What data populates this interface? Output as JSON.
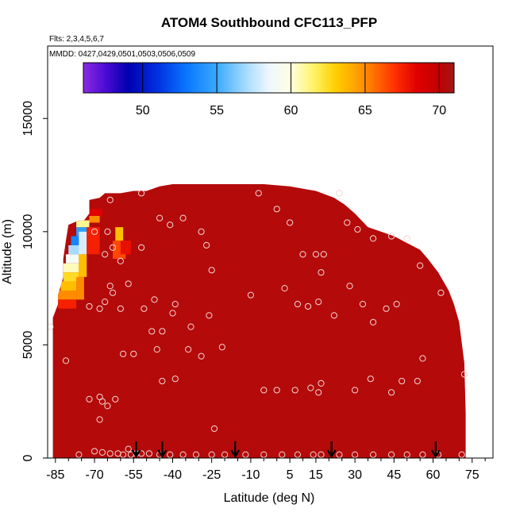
{
  "chart_data": {
    "type": "heatmap",
    "title": "ATOM4 Southbound CFC113_PFP",
    "subtitle_flights": "Flts: 2,3,4,5,6,7",
    "subtitle_dates": "MMDD: 0427,0429,0501,0503,0506,0509",
    "xlabel": "Latitude (deg N)",
    "ylabel": "Altitude (m)",
    "xlim": [
      -88,
      83
    ],
    "ylim": [
      0,
      18200
    ],
    "x_ticks": [
      -85,
      -70,
      -55,
      -40,
      -25,
      -10,
      5,
      15,
      30,
      45,
      60,
      75
    ],
    "x_minor_ticks": [
      -80,
      -75,
      -65,
      -60,
      -50,
      -45,
      -35,
      -30,
      -20,
      -15,
      -5,
      0,
      10,
      20,
      25,
      35,
      40,
      50,
      55,
      65,
      70,
      80
    ],
    "y_ticks": [
      0,
      5000,
      10000,
      15000
    ],
    "colorbar": {
      "range": [
        46,
        71
      ],
      "ticks": [
        50,
        55,
        60,
        65,
        70
      ],
      "stops": [
        {
          "v": 46,
          "color": "#8a2be2"
        },
        {
          "v": 47.5,
          "color": "#4b0bd4"
        },
        {
          "v": 49,
          "color": "#0000b0"
        },
        {
          "v": 51,
          "color": "#0030e0"
        },
        {
          "v": 53,
          "color": "#0a78ff"
        },
        {
          "v": 55,
          "color": "#3aaaff"
        },
        {
          "v": 57,
          "color": "#a8dcff"
        },
        {
          "v": 58.5,
          "color": "#eef7ff"
        },
        {
          "v": 60,
          "color": "#ffffe0"
        },
        {
          "v": 61.5,
          "color": "#fff36a"
        },
        {
          "v": 63,
          "color": "#ffd000"
        },
        {
          "v": 65,
          "color": "#ff8c00"
        },
        {
          "v": 67,
          "color": "#ff3000"
        },
        {
          "v": 68.5,
          "color": "#e00000"
        },
        {
          "v": 70,
          "color": "#c20000"
        },
        {
          "v": 71,
          "color": "#a01818"
        }
      ]
    },
    "field_background_value": 70.4,
    "field_outline": [
      [
        -86,
        5500
      ],
      [
        -86,
        6200
      ],
      [
        -84,
        6800
      ],
      [
        -84,
        7200
      ],
      [
        -82,
        8000
      ],
      [
        -82,
        8800
      ],
      [
        -81,
        9600
      ],
      [
        -80,
        10300
      ],
      [
        -78,
        10400
      ],
      [
        -76,
        10500
      ],
      [
        -74,
        10500
      ],
      [
        -72,
        10800
      ],
      [
        -72,
        11400
      ],
      [
        -68,
        11500
      ],
      [
        -66,
        11700
      ],
      [
        -60,
        11700
      ],
      [
        -55,
        11800
      ],
      [
        -50,
        11800
      ],
      [
        -45,
        12000
      ],
      [
        -40,
        12100
      ],
      [
        -30,
        12100
      ],
      [
        -20,
        12100
      ],
      [
        -5,
        12100
      ],
      [
        5,
        12000
      ],
      [
        15,
        11800
      ],
      [
        22,
        11500
      ],
      [
        26,
        11200
      ],
      [
        30,
        10800
      ],
      [
        35,
        10200
      ],
      [
        40,
        10000
      ],
      [
        45,
        9800
      ],
      [
        50,
        9500
      ],
      [
        55,
        9200
      ],
      [
        58,
        8800
      ],
      [
        62,
        8200
      ],
      [
        66,
        7400
      ],
      [
        68,
        6800
      ],
      [
        70,
        6000
      ],
      [
        72,
        4200
      ],
      [
        72.5,
        2000
      ],
      [
        72.5,
        0
      ],
      [
        -86,
        0
      ]
    ],
    "panels": [
      {
        "lat0": -77,
        "lat1": -73,
        "alt0": 9800,
        "alt1": 10200,
        "v": 54.5
      },
      {
        "lat0": -79,
        "lat1": -75,
        "alt0": 9400,
        "alt1": 9800,
        "v": 53.5
      },
      {
        "lat0": -80,
        "lat1": -75,
        "alt0": 9000,
        "alt1": 9400,
        "v": 57
      },
      {
        "lat0": -81,
        "lat1": -76,
        "alt0": 8600,
        "alt1": 9000,
        "v": 59
      },
      {
        "lat0": -82,
        "lat1": -76,
        "alt0": 8200,
        "alt1": 8600,
        "v": 60.5
      },
      {
        "lat0": -82,
        "lat1": -76,
        "alt0": 7800,
        "alt1": 8200,
        "v": 62.5
      },
      {
        "lat0": -83,
        "lat1": -77,
        "alt0": 7400,
        "alt1": 7800,
        "v": 63.5
      },
      {
        "lat0": -84,
        "lat1": -77,
        "alt0": 7000,
        "alt1": 7400,
        "v": 65
      },
      {
        "lat0": -84,
        "lat1": -77,
        "alt0": 6600,
        "alt1": 7000,
        "v": 67.5
      },
      {
        "lat0": -76,
        "lat1": -73,
        "alt0": 9000,
        "alt1": 10000,
        "v": 58
      },
      {
        "lat0": -76,
        "lat1": -73,
        "alt0": 8000,
        "alt1": 9000,
        "v": 63.5
      },
      {
        "lat0": -77,
        "lat1": -74,
        "alt0": 7000,
        "alt1": 8000,
        "v": 65
      },
      {
        "lat0": -77,
        "lat1": -72,
        "alt0": 10200,
        "alt1": 10500,
        "v": 61
      },
      {
        "lat0": -72,
        "lat1": -68,
        "alt0": 10400,
        "alt1": 10700,
        "v": 65
      },
      {
        "lat0": -73,
        "lat1": -68,
        "alt0": 9000,
        "alt1": 10200,
        "v": 67.5
      },
      {
        "lat0": -62,
        "lat1": -59,
        "alt0": 9600,
        "alt1": 10200,
        "v": 63.5
      },
      {
        "lat0": -63,
        "lat1": -58,
        "alt0": 8800,
        "alt1": 9600,
        "v": 66.5
      },
      {
        "lat0": -60,
        "lat1": -56,
        "alt0": 9000,
        "alt1": 9600,
        "v": 68
      },
      {
        "lat0": -72,
        "lat1": -67,
        "alt0": 10700,
        "alt1": 11000,
        "v": 68.5
      }
    ],
    "observations": [
      [
        -76,
        150
      ],
      [
        -70,
        300
      ],
      [
        -67,
        250
      ],
      [
        -64,
        200
      ],
      [
        -61,
        200
      ],
      [
        -59,
        150
      ],
      [
        -56,
        150
      ],
      [
        -52,
        200
      ],
      [
        -49,
        200
      ],
      [
        -45,
        150
      ],
      [
        -41,
        150
      ],
      [
        -36,
        150
      ],
      [
        -31,
        150
      ],
      [
        -25,
        150
      ],
      [
        -20,
        150
      ],
      [
        -12,
        150
      ],
      [
        -5,
        150
      ],
      [
        2,
        150
      ],
      [
        8,
        150
      ],
      [
        14,
        150
      ],
      [
        17,
        150
      ],
      [
        24,
        150
      ],
      [
        30,
        150
      ],
      [
        37,
        150
      ],
      [
        44,
        150
      ],
      [
        50,
        150
      ],
      [
        56,
        150
      ],
      [
        62,
        150
      ],
      [
        71,
        150
      ],
      [
        -68,
        2700
      ],
      [
        -67,
        2500
      ],
      [
        -65,
        2300
      ],
      [
        -62,
        2600
      ],
      [
        -68,
        1700
      ],
      [
        -24,
        1300
      ],
      [
        -54,
        200
      ],
      [
        -57,
        400
      ],
      [
        -72,
        2600
      ],
      [
        -59,
        4600
      ],
      [
        -55,
        4600
      ],
      [
        -44,
        5600
      ],
      [
        -48,
        5600
      ],
      [
        -46,
        4800
      ],
      [
        -39,
        6800
      ],
      [
        -33,
        5800
      ],
      [
        -34,
        4800
      ],
      [
        -29,
        4500
      ],
      [
        -26,
        6300
      ],
      [
        -21,
        4900
      ],
      [
        -44,
        3400
      ],
      [
        -39,
        3500
      ],
      [
        -64,
        7600
      ],
      [
        -66,
        6900
      ],
      [
        -63,
        7300
      ],
      [
        -60,
        6600
      ],
      [
        -57,
        7700
      ],
      [
        -51,
        6600
      ],
      [
        -47,
        7000
      ],
      [
        -40,
        6400
      ],
      [
        -81,
        4300
      ],
      [
        -87,
        5800
      ],
      [
        -72,
        6700
      ],
      [
        -68,
        6600
      ],
      [
        -70,
        10000
      ],
      [
        -66,
        9000
      ],
      [
        -65,
        10000
      ],
      [
        -63,
        9300
      ],
      [
        -60,
        8700
      ],
      [
        -52,
        9300
      ],
      [
        -45,
        10600
      ],
      [
        -41,
        10300
      ],
      [
        -36,
        10600
      ],
      [
        -29,
        10000
      ],
      [
        -27,
        9400
      ],
      [
        -25,
        8300
      ],
      [
        -52,
        11700
      ],
      [
        -64,
        11400
      ],
      [
        -7,
        11700
      ],
      [
        0,
        11000
      ],
      [
        5,
        10400
      ],
      [
        10,
        9000
      ],
      [
        15,
        9000
      ],
      [
        17,
        8200
      ],
      [
        18,
        9000
      ],
      [
        24,
        11700
      ],
      [
        27,
        10400
      ],
      [
        31,
        10100
      ],
      [
        37,
        9700
      ],
      [
        44,
        9800
      ],
      [
        50,
        9700
      ],
      [
        55,
        8500
      ],
      [
        63,
        7300
      ],
      [
        72,
        3700
      ],
      [
        -10,
        7200
      ],
      [
        3,
        7500
      ],
      [
        8,
        6800
      ],
      [
        12,
        6700
      ],
      [
        16,
        6900
      ],
      [
        22,
        6300
      ],
      [
        28,
        7600
      ],
      [
        33,
        6800
      ],
      [
        37,
        6000
      ],
      [
        42,
        6600
      ],
      [
        46,
        6800
      ],
      [
        -5,
        3000
      ],
      [
        0,
        3000
      ],
      [
        7,
        3000
      ],
      [
        13,
        3100
      ],
      [
        16,
        2900
      ],
      [
        17,
        3300
      ],
      [
        30,
        3000
      ],
      [
        36,
        3500
      ],
      [
        44,
        2900
      ],
      [
        48,
        3400
      ],
      [
        54,
        3400
      ],
      [
        56,
        4400
      ]
    ],
    "arrow_latitudes": [
      -54,
      -44,
      -16,
      21,
      61
    ]
  }
}
